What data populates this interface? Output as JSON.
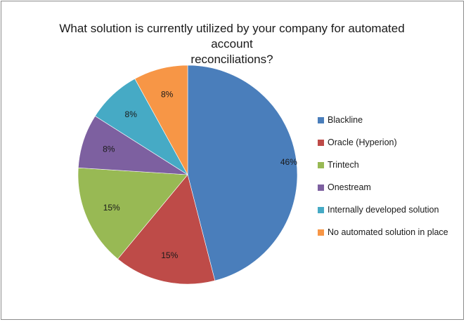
{
  "chart_data": {
    "type": "pie",
    "title_lines": [
      "What solution is currently utilized by your company for automated account",
      "reconciliations?"
    ],
    "categories": [
      "Blackline",
      "Oracle (Hyperion)",
      "Trintech",
      "Onestream",
      "Internally developed solution",
      "No automated solution in place"
    ],
    "values": [
      46,
      15,
      15,
      8,
      8,
      8
    ],
    "data_labels": [
      "46%",
      "15%",
      "15%",
      "8%",
      "8%",
      "8%"
    ],
    "colors": [
      "#4a7ebb",
      "#be4b48",
      "#98b954",
      "#7d60a0",
      "#46aac5",
      "#f79646"
    ],
    "legend_position": "right",
    "start_angle_deg": 0,
    "direction": "clockwise"
  }
}
